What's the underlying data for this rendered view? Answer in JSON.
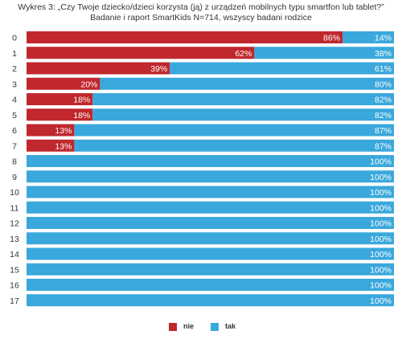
{
  "chart_data": {
    "type": "bar",
    "orientation": "horizontal-stacked-100",
    "title": "Wykres 3: „Czy Twoje dziecko/dzieci korzysta (ją) z urządzeń mobilnych typu smartfon lub tablet?”",
    "subtitle": "Badanie i raport SmartKids N=714, wszyscy badani rodzice",
    "categories": [
      "0",
      "1",
      "2",
      "3",
      "4",
      "5",
      "6",
      "7",
      "8",
      "9",
      "10",
      "11",
      "12",
      "13",
      "14",
      "15",
      "16",
      "17"
    ],
    "series": [
      {
        "name": "nie",
        "color": "#c0282d",
        "values": [
          86,
          62,
          39,
          20,
          18,
          18,
          13,
          13,
          0,
          0,
          0,
          0,
          0,
          0,
          0,
          0,
          0,
          0
        ],
        "labels": [
          "86%",
          "62%",
          "39%",
          "20%",
          "18%",
          "18%",
          "13%",
          "13%",
          "",
          "",
          "",
          "",
          "",
          "",
          "",
          "",
          "",
          ""
        ]
      },
      {
        "name": "tak",
        "color": "#3aa8dc",
        "values": [
          14,
          38,
          61,
          80,
          82,
          82,
          87,
          87,
          100,
          100,
          100,
          100,
          100,
          100,
          100,
          100,
          100,
          100
        ],
        "labels": [
          "14%",
          "38%",
          "61%",
          "80%",
          "82%",
          "82%",
          "87%",
          "87%",
          "100%",
          "100%",
          "100%",
          "100%",
          "100%",
          "100%",
          "100%",
          "100%",
          "100%",
          "100%"
        ]
      }
    ],
    "xlim": [
      0,
      100
    ],
    "grid": false,
    "legend_position": "bottom"
  }
}
